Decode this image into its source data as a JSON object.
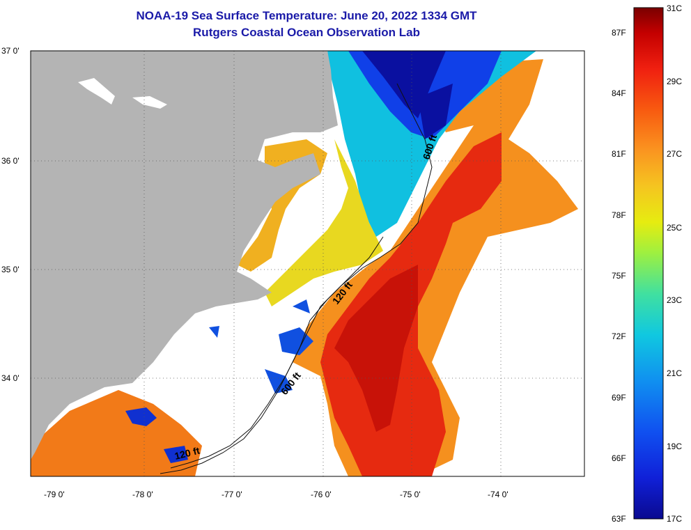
{
  "title": "NOAA-19 Sea Surface Temperature:  June 20, 2022 1334 GMT",
  "subtitle": "Rutgers Coastal Ocean Observation Lab",
  "latitude_labels": [
    "37 0'",
    "36 0'",
    "35 0'",
    "34 0'"
  ],
  "longitude_labels": [
    "-79 0'",
    "-78 0'",
    "-77 0'",
    "-76 0'",
    "-75 0'",
    "-74 0'"
  ],
  "contour_labels": {
    "c600_north": "600 ft",
    "c120": "120 ft",
    "c600_south": "600 ft",
    "c120_south": "120 ft"
  },
  "colorbar": {
    "fahrenheit": [
      "87F",
      "84F",
      "81F",
      "78F",
      "75F",
      "72F",
      "69F",
      "66F",
      "63F"
    ],
    "celsius": [
      "31C",
      "29C",
      "27C",
      "25C",
      "23C",
      "21C",
      "19C",
      "17C"
    ],
    "colors": [
      "#7a0000",
      "#c40000",
      "#f02010",
      "#f85a10",
      "#fa9520",
      "#f5c520",
      "#e6ec10",
      "#9ef040",
      "#40e0a0",
      "#10c8e0",
      "#1090f0",
      "#1050f0",
      "#1020d8",
      "#0a0a90"
    ]
  },
  "colors": {
    "land": "#b4b4b4",
    "ocean_no_data": "#ffffff",
    "title": "#1a1aa8"
  }
}
